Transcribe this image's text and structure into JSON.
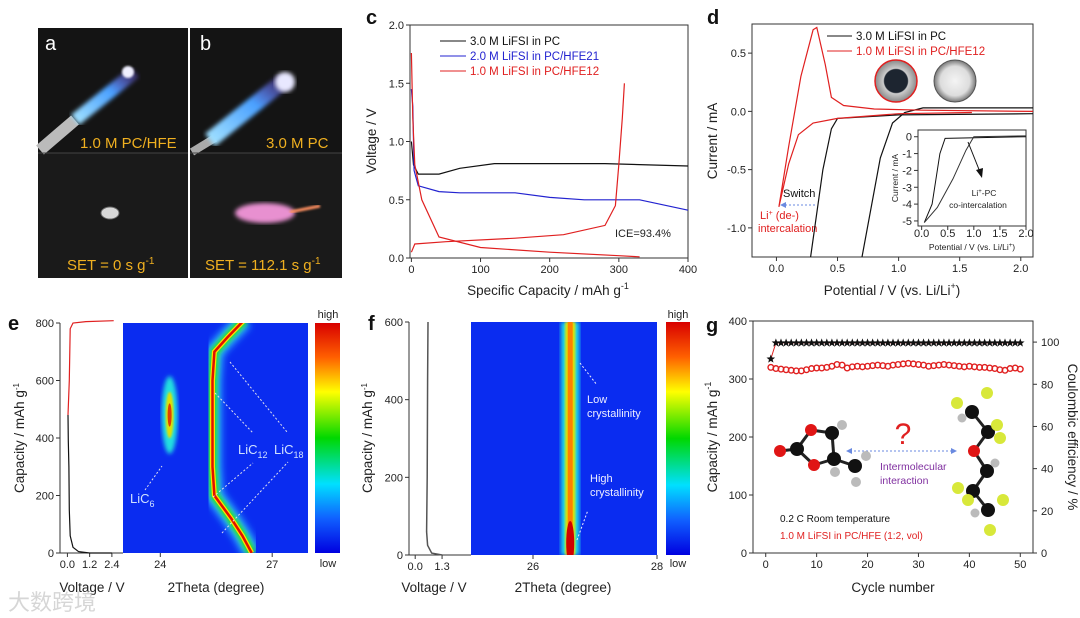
{
  "watermark": "大数跨境",
  "panel_a": {
    "label": "a",
    "caption_top": "1.0 M PC/HFE",
    "caption_bottom": "SET = 0 s g",
    "caption_bottom_sup": "-1"
  },
  "panel_b": {
    "label": "b",
    "caption_top": "3.0 M PC",
    "caption_bottom": "SET = 112.1 s g",
    "caption_bottom_sup": "-1"
  },
  "colors": {
    "black": "#111111",
    "blue": "#2323d0",
    "red": "#e02020",
    "caption": "#f0b020",
    "heat_bg": "#0a2cf0"
  },
  "chart_data": [
    {
      "panel": "c",
      "type": "line",
      "xlabel": "Specific Capacity / mAh g",
      "xlabel_sup": "-1",
      "ylabel": "Voltage / V",
      "xlim": [
        0,
        400
      ],
      "ylim": [
        0,
        2.0
      ],
      "xticks": [
        "0",
        "100",
        "200",
        "300",
        "400"
      ],
      "xtick_values": [
        0,
        100,
        200,
        300,
        400
      ],
      "yticks": [
        "0.0",
        "0.5",
        "1.0",
        "1.5",
        "2.0"
      ],
      "ytick_values": [
        0,
        0.5,
        1.0,
        1.5,
        2.0
      ],
      "legend": "top-left",
      "annotation": "ICE=93.4%",
      "series": [
        {
          "name": "3.0 M LiFSI in PC",
          "color": "#111111",
          "points": [
            [
              0,
              1.0
            ],
            [
              3,
              0.8
            ],
            [
              10,
              0.72
            ],
            [
              40,
              0.72
            ],
            [
              70,
              0.77
            ],
            [
              120,
              0.81
            ],
            [
              200,
              0.81
            ],
            [
              280,
              0.81
            ],
            [
              400,
              0.79
            ]
          ]
        },
        {
          "name": "2.0 M LiFSI in PC/HFE21",
          "color": "#2323d0",
          "points": [
            [
              0,
              1.45
            ],
            [
              2,
              1.3
            ],
            [
              4,
              0.75
            ],
            [
              10,
              0.62
            ],
            [
              40,
              0.57
            ],
            [
              70,
              0.56
            ],
            [
              150,
              0.56
            ],
            [
              200,
              0.52
            ],
            [
              250,
              0.5
            ],
            [
              330,
              0.5
            ],
            [
              400,
              0.41
            ]
          ]
        },
        {
          "name": "1.0 M LiFSI in PC/HFE12",
          "color": "#e02020",
          "points": [
            [
              0,
              1.76
            ],
            [
              2,
              1.2
            ],
            [
              5,
              0.8
            ],
            [
              15,
              0.5
            ],
            [
              40,
              0.18
            ],
            [
              100,
              0.09
            ],
            [
              200,
              0.05
            ],
            [
              300,
              0.02
            ],
            [
              330,
              0.01
            ]
          ]
        },
        {
          "name": "1.0 M LiFSI in PC/HFE12 (charge)",
          "color": "#e02020",
          "legend": false,
          "points": [
            [
              0,
              0.05
            ],
            [
              5,
              0.12
            ],
            [
              50,
              0.14
            ],
            [
              150,
              0.17
            ],
            [
              220,
              0.2
            ],
            [
              280,
              0.28
            ],
            [
              295,
              0.45
            ],
            [
              300,
              0.8
            ],
            [
              305,
              1.2
            ],
            [
              308,
              1.5
            ]
          ]
        }
      ]
    },
    {
      "panel": "d",
      "type": "line",
      "xlabel": "Potential / V (vs. Li/Li",
      "xlabel_sup": "+",
      "xlabel_end": ")",
      "ylabel": "Current / mA",
      "xlim": [
        -0.2,
        2.1
      ],
      "ylim": [
        -1.25,
        0.75
      ],
      "xticks": [
        "0.0",
        "0.5",
        "1.0",
        "1.5",
        "2.0"
      ],
      "xtick_values": [
        0,
        0.5,
        1.0,
        1.5,
        2.0
      ],
      "yticks": [
        "-1.0",
        "-0.5",
        "0.0",
        "0.5"
      ],
      "ytick_values": [
        -1.0,
        -0.5,
        0,
        0.5
      ],
      "legend": "top-center",
      "annotations": {
        "switch": "Switch",
        "li_1": "Li",
        "li_sup": "+",
        "li_2": " (de-)",
        "li_3": "intercalation"
      },
      "series": [
        {
          "name": "3.0 M LiFSI in PC",
          "color": "#111111",
          "points": [
            [
              2.1,
              0.03
            ],
            [
              1.2,
              0.03
            ],
            [
              1.05,
              -0.01
            ],
            [
              0.95,
              -0.1
            ],
            [
              0.85,
              -0.4
            ],
            [
              0.7,
              -1.25
            ]
          ]
        },
        {
          "name": "3.0 M LiFSI in PC (2)",
          "legend": false,
          "color": "#111111",
          "points": [
            [
              0.28,
              -1.25
            ],
            [
              0.38,
              -0.5
            ],
            [
              0.45,
              -0.15
            ],
            [
              0.5,
              -0.06
            ],
            [
              1.0,
              -0.03
            ],
            [
              2.1,
              -0.02
            ]
          ]
        },
        {
          "name": "1.0 M LiFSI in PC/HFE12",
          "color": "#e02020",
          "points": [
            [
              1.6,
              -0.01
            ],
            [
              1.0,
              -0.02
            ],
            [
              0.5,
              -0.06
            ],
            [
              0.3,
              -0.1
            ],
            [
              0.18,
              -0.2
            ],
            [
              0.1,
              -0.45
            ],
            [
              0.02,
              -0.82
            ],
            [
              0.1,
              -0.3
            ],
            [
              0.2,
              0.3
            ],
            [
              0.3,
              0.7
            ],
            [
              0.33,
              0.72
            ],
            [
              0.4,
              0.4
            ],
            [
              0.45,
              0.12
            ],
            [
              0.55,
              0.05
            ],
            [
              0.8,
              0.02
            ],
            [
              1.2,
              0.01
            ],
            [
              2.1,
              0.0
            ]
          ]
        }
      ],
      "inset": {
        "xlabel": "Potential / V (vs. Li/Li",
        "xlabel_sup": "+",
        "xlabel_end": ")",
        "ylabel": "Current / mA",
        "xlim": [
          0,
          2.0
        ],
        "ylim": [
          -5.3,
          0.4
        ],
        "xticks": [
          "0.0",
          "0.5",
          "1.0",
          "1.5",
          "2.0"
        ],
        "xtick_values": [
          0,
          0.5,
          1.0,
          1.5,
          2.0
        ],
        "yticks": [
          "0",
          "-1",
          "-2",
          "-3",
          "-4",
          "-5"
        ],
        "ytick_values": [
          0,
          -1,
          -2,
          -3,
          -4,
          -5
        ],
        "annotation_1": "Li",
        "annotation_sup": "+",
        "annotation_2": "-PC",
        "annotation_3": "co-intercalation",
        "series": [
          {
            "name": "inset-1",
            "color": "#111111",
            "points": [
              [
                0.05,
                -5.1
              ],
              [
                0.2,
                -4
              ],
              [
                0.35,
                -1
              ],
              [
                0.45,
                -0.1
              ],
              [
                2,
                0
              ]
            ]
          },
          {
            "name": "inset-2",
            "color": "#333333",
            "points": [
              [
                0.05,
                -5.1
              ],
              [
                0.3,
                -4.2
              ],
              [
                0.6,
                -2.5
              ],
              [
                0.85,
                -0.8
              ],
              [
                1.0,
                0
              ],
              [
                2,
                0.05
              ]
            ]
          }
        ]
      }
    },
    {
      "panel": "e",
      "type": "heatmap",
      "ylabel": "Capacity / mAh g",
      "ylabel_sup": "-1",
      "xlabel_voltage": "Voltage / V",
      "xlabel_theta": "2Theta (degree)",
      "ylim": [
        0,
        800
      ],
      "yticks": [
        "0",
        "200",
        "400",
        "600",
        "800"
      ],
      "ytick_values": [
        0,
        200,
        400,
        600,
        800
      ],
      "voltage_xlim": [
        -0.4,
        3.0
      ],
      "voltage_xticks": [
        "0.0",
        "1.2",
        "2.4"
      ],
      "voltage_xtick_values": [
        0,
        1.2,
        2.4
      ],
      "theta_xlim": [
        23.0,
        27.96
      ],
      "theta_xticks": [
        "24",
        "27"
      ],
      "theta_xtick_values": [
        24,
        27
      ],
      "colorbar": {
        "high": "high",
        "low": "low"
      },
      "phase_labels": {
        "lic6": "LiC",
        "lic6_sub": "6",
        "lic12": "LiC",
        "lic12_sub": "12",
        "lic18": "LiC",
        "lic18_sub": "18"
      },
      "voltage_discharge": [
        [
          2.4,
          0
        ],
        [
          1.2,
          0
        ],
        [
          0.6,
          5
        ],
        [
          0.3,
          20
        ],
        [
          0.15,
          60
        ],
        [
          0.1,
          150
        ],
        [
          0.08,
          300
        ],
        [
          0.05,
          390
        ],
        [
          0.03,
          480
        ]
      ],
      "voltage_charge": [
        [
          0.03,
          480
        ],
        [
          0.1,
          600
        ],
        [
          0.15,
          780
        ],
        [
          0.3,
          800
        ],
        [
          1.0,
          805
        ],
        [
          2.5,
          808
        ]
      ],
      "main_peak": [
        [
          26.45,
          0
        ],
        [
          26.2,
          60
        ],
        [
          25.9,
          120
        ],
        [
          25.45,
          200
        ],
        [
          25.4,
          300
        ],
        [
          25.4,
          480
        ],
        [
          25.4,
          600
        ],
        [
          25.45,
          700
        ],
        [
          25.8,
          750
        ],
        [
          26.25,
          810
        ]
      ],
      "lic6_peak": {
        "two_theta": 24.25,
        "capacity_range": [
          330,
          600
        ],
        "center": 480
      }
    },
    {
      "panel": "f",
      "type": "heatmap",
      "ylabel": "Capacity / mAh g",
      "ylabel_sup": "-1",
      "xlabel_voltage": "Voltage / V",
      "xlabel_theta": "2Theta (degree)",
      "ylim": [
        0,
        600
      ],
      "yticks": [
        "0",
        "200",
        "400",
        "600"
      ],
      "ytick_values": [
        0,
        200,
        400,
        600
      ],
      "voltage_xlim": [
        -0.3,
        2.7
      ],
      "voltage_xticks": [
        "0.0",
        "1.3"
      ],
      "voltage_xtick_values": [
        0,
        1.3
      ],
      "theta_xlim": [
        25.0,
        28.0
      ],
      "theta_xticks": [
        "26",
        "28"
      ],
      "theta_xtick_values": [
        26,
        28
      ],
      "colorbar": {
        "high": "high",
        "low": "low"
      },
      "annotations": {
        "low_1": "Low",
        "low_2": "crystallinity",
        "high_1": "High",
        "high_2": "crystallinity"
      },
      "voltage_curve": [
        [
          1.3,
          0
        ],
        [
          0.8,
          5
        ],
        [
          0.6,
          25
        ],
        [
          0.55,
          60
        ],
        [
          0.58,
          200
        ],
        [
          0.6,
          450
        ],
        [
          0.62,
          600
        ]
      ],
      "main_peak_two_theta": 26.6
    },
    {
      "panel": "g",
      "type": "scatter",
      "xlabel": "Cycle number",
      "ylabel": "Capacity / mAh g",
      "ylabel_sup": "-1",
      "y2label": "Coulombic efficiency / %",
      "xlim": [
        -2.5,
        52.5
      ],
      "ylim": [
        0,
        400
      ],
      "y2lim": [
        0,
        110
      ],
      "xticks": [
        "0",
        "10",
        "20",
        "30",
        "40",
        "50"
      ],
      "xtick_values": [
        0,
        10,
        20,
        30,
        40,
        50
      ],
      "yticks": [
        "0",
        "100",
        "200",
        "300",
        "400"
      ],
      "ytick_values": [
        0,
        100,
        200,
        300,
        400
      ],
      "y2ticks": [
        "0",
        "20",
        "40",
        "60",
        "80",
        "100"
      ],
      "y2tick_values": [
        0,
        20,
        40,
        60,
        80,
        100
      ],
      "annotations": {
        "cond": "0.2 C  Room temperature",
        "electrolyte": "1.0 M  LiFSI in PC/HFE (1:2, vol)",
        "question": "?",
        "inter_1": "Intermolecular",
        "inter_2": "interaction"
      },
      "capacity": [
        320,
        318,
        317,
        316,
        315,
        314,
        314,
        316,
        318,
        319,
        319,
        320,
        322,
        325,
        324,
        319,
        321,
        322,
        321,
        322,
        323,
        324,
        323,
        322,
        324,
        325,
        326,
        327,
        326,
        325,
        324,
        322,
        323,
        324,
        325,
        324,
        323,
        322,
        321,
        322,
        321,
        320,
        320,
        319,
        318,
        316,
        315,
        318,
        319,
        317
      ],
      "coulombic_efficiency_first": 92,
      "coulombic_efficiency_rest": 99.6
    }
  ]
}
